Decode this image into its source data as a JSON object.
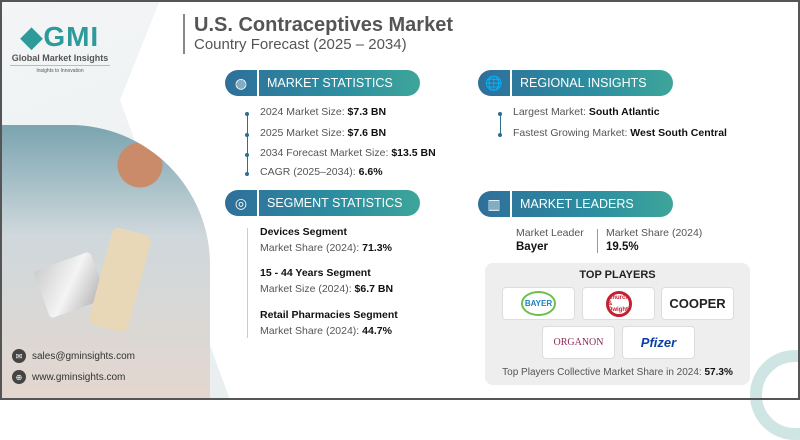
{
  "brand": {
    "logo_text": "GMI",
    "name": "Global Market Insights",
    "tagline": "Insights to Innovation"
  },
  "header": {
    "title": "U.S. Contraceptives Market",
    "subtitle": "Country Forecast (2025 – 2034)"
  },
  "market_statistics": {
    "label": "MARKET STATISTICS",
    "icon": "globe-chart-icon",
    "items": [
      {
        "label": "2024 Market Size: ",
        "value": "$7.3 BN"
      },
      {
        "label": "2025 Market Size: ",
        "value": "$7.6 BN"
      },
      {
        "label": "2034 Forecast Market Size: ",
        "value": "$13.5 BN"
      },
      {
        "label": "CAGR (2025–2034): ",
        "value": "6.6%"
      }
    ]
  },
  "regional_insights": {
    "label": "REGIONAL INSIGHTS",
    "icon": "globe-icon",
    "items": [
      {
        "label": "Largest Market: ",
        "value": "South Atlantic"
      },
      {
        "label": "Fastest Growing Market: ",
        "value": "West South Central"
      }
    ]
  },
  "segment_statistics": {
    "label": "SEGMENT STATISTICS",
    "icon": "target-chart-icon",
    "items": [
      {
        "title": "Devices Segment",
        "label": "Market Share (2024): ",
        "value": "71.3%"
      },
      {
        "title": "15 - 44 Years Segment",
        "label": "Market Size (2024): ",
        "value": "$6.7 BN"
      },
      {
        "title": "Retail Pharmacies Segment",
        "label": "Market Share (2024): ",
        "value": "44.7%"
      }
    ]
  },
  "market_leaders": {
    "label": "MARKET LEADERS",
    "icon": "building-chart-icon",
    "leader_label": "Market Leader",
    "leader": "Bayer",
    "share_label": "Market Share (2024)",
    "share": "19.5%"
  },
  "top_players": {
    "title": "TOP PLAYERS",
    "logos": [
      "BAYER",
      "Church & Dwight",
      "COOPER",
      "ORGANON",
      "Pfizer"
    ],
    "collective_label": "Top Players Collective Market Share in 2024: ",
    "collective_value": "57.3%"
  },
  "contact": {
    "email": "sales@gminsights.com",
    "website": "www.gminsights.com"
  },
  "colors": {
    "accent": "#2c8fa0",
    "dark_accent": "#2f6f9a"
  }
}
